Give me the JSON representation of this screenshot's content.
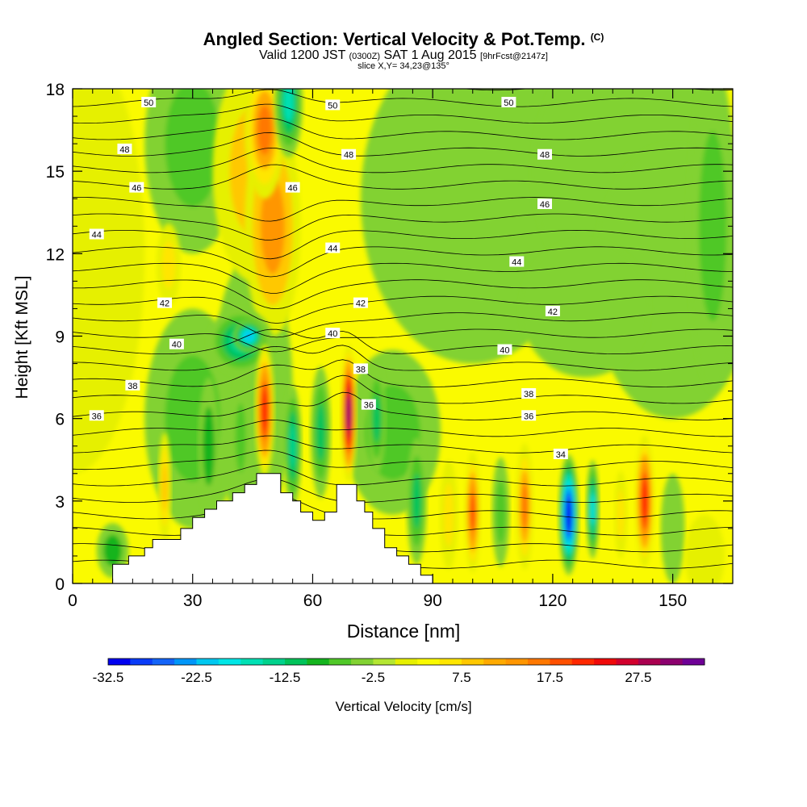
{
  "chart_data": {
    "type": "heatmap",
    "title": "Angled Section: Vertical Velocity & Pot.Temp.",
    "title_unit": "(C)",
    "subtitle": {
      "a": "Valid 1200 JST",
      "b": "(0300Z)",
      "c": "SAT 1 Aug 2015",
      "d": "[9hrFcst@2147z]"
    },
    "subtitle2": "slice X,Y= 34,23@135°",
    "xlabel": "Distance [nm]",
    "ylabel": "Height [Kft MSL]",
    "xlim": [
      0,
      165
    ],
    "ylim": [
      0,
      18
    ],
    "xticks": [
      "0",
      "30",
      "60",
      "90",
      "120",
      "150"
    ],
    "yticks": [
      "0",
      "3",
      "6",
      "9",
      "12",
      "15",
      "18"
    ],
    "colorbar": {
      "label": "Vertical Velocity [cm/s]",
      "tick_labels": [
        "-32.5",
        "-22.5",
        "-12.5",
        "-2.5",
        "7.5",
        "17.5",
        "27.5"
      ],
      "levels": [
        -32.5,
        -30,
        -27.5,
        -25,
        -22.5,
        -20,
        -17.5,
        -15,
        -12.5,
        -10,
        -7.5,
        -5,
        -2.5,
        0,
        2.5,
        5,
        7.5,
        10,
        12.5,
        15,
        17.5,
        20,
        22.5,
        25,
        27.5,
        30,
        32.5
      ],
      "colors": [
        "#0000f0",
        "#0a3cf8",
        "#1464f8",
        "#0096f8",
        "#00c8f0",
        "#00e6e6",
        "#00e0b4",
        "#00d28c",
        "#00c35a",
        "#14b41e",
        "#50c828",
        "#82d232",
        "#b4e632",
        "#e6f000",
        "#fafa00",
        "#ffe600",
        "#ffc800",
        "#ffaa00",
        "#ff9600",
        "#ff7800",
        "#ff5000",
        "#ff2800",
        "#f00a0a",
        "#d2002d",
        "#aa0050",
        "#8c006e",
        "#6e0096"
      ]
    },
    "terrain_kft": [
      [
        0,
        0
      ],
      [
        10,
        0
      ],
      [
        10,
        0.7
      ],
      [
        14,
        0.7
      ],
      [
        14,
        1.0
      ],
      [
        18,
        1.0
      ],
      [
        18,
        1.3
      ],
      [
        20,
        1.3
      ],
      [
        20,
        1.6
      ],
      [
        27,
        1.6
      ],
      [
        27,
        2.0
      ],
      [
        30,
        2.0
      ],
      [
        30,
        2.4
      ],
      [
        33,
        2.4
      ],
      [
        33,
        2.7
      ],
      [
        36,
        2.7
      ],
      [
        36,
        3.0
      ],
      [
        40,
        3.0
      ],
      [
        40,
        3.3
      ],
      [
        43,
        3.3
      ],
      [
        43,
        3.6
      ],
      [
        46,
        3.6
      ],
      [
        46,
        4.0
      ],
      [
        52,
        4.0
      ],
      [
        52,
        3.3
      ],
      [
        55,
        3.3
      ],
      [
        55,
        3.0
      ],
      [
        57,
        3.0
      ],
      [
        57,
        2.6
      ],
      [
        60,
        2.6
      ],
      [
        60,
        2.3
      ],
      [
        63,
        2.3
      ],
      [
        63,
        2.6
      ],
      [
        66,
        2.6
      ],
      [
        66,
        3.6
      ],
      [
        71,
        3.6
      ],
      [
        71,
        3.0
      ],
      [
        73,
        3.0
      ],
      [
        73,
        2.6
      ],
      [
        75,
        2.6
      ],
      [
        75,
        2.0
      ],
      [
        78,
        2.0
      ],
      [
        78,
        1.3
      ],
      [
        81,
        1.3
      ],
      [
        81,
        1.0
      ],
      [
        84,
        1.0
      ],
      [
        84,
        0.7
      ],
      [
        87,
        0.7
      ],
      [
        87,
        0.3
      ],
      [
        90,
        0.3
      ],
      [
        90,
        0
      ],
      [
        165,
        0
      ]
    ],
    "isentrope_labels": [
      {
        "text": "50",
        "x": 19,
        "y": 17.5
      },
      {
        "text": "50",
        "x": 65,
        "y": 17.4
      },
      {
        "text": "50",
        "x": 109,
        "y": 17.5
      },
      {
        "text": "48",
        "x": 13,
        "y": 15.8
      },
      {
        "text": "48",
        "x": 69,
        "y": 15.6
      },
      {
        "text": "48",
        "x": 118,
        "y": 15.6
      },
      {
        "text": "46",
        "x": 16,
        "y": 14.4
      },
      {
        "text": "46",
        "x": 55,
        "y": 14.4
      },
      {
        "text": "46",
        "x": 118,
        "y": 13.8
      },
      {
        "text": "44",
        "x": 6,
        "y": 12.7
      },
      {
        "text": "44",
        "x": 65,
        "y": 12.2
      },
      {
        "text": "44",
        "x": 111,
        "y": 11.7
      },
      {
        "text": "42",
        "x": 23,
        "y": 10.2
      },
      {
        "text": "42",
        "x": 72,
        "y": 10.2
      },
      {
        "text": "42",
        "x": 120,
        "y": 9.9
      },
      {
        "text": "40",
        "x": 26,
        "y": 8.7
      },
      {
        "text": "40",
        "x": 65,
        "y": 9.1
      },
      {
        "text": "40",
        "x": 108,
        "y": 8.5
      },
      {
        "text": "38",
        "x": 15,
        "y": 7.2
      },
      {
        "text": "38",
        "x": 72,
        "y": 7.8
      },
      {
        "text": "38",
        "x": 114,
        "y": 6.9
      },
      {
        "text": "36",
        "x": 6,
        "y": 6.1
      },
      {
        "text": "36",
        "x": 74,
        "y": 6.5
      },
      {
        "text": "36",
        "x": 114,
        "y": 6.1
      },
      {
        "text": "34",
        "x": 122,
        "y": 4.7
      }
    ]
  }
}
